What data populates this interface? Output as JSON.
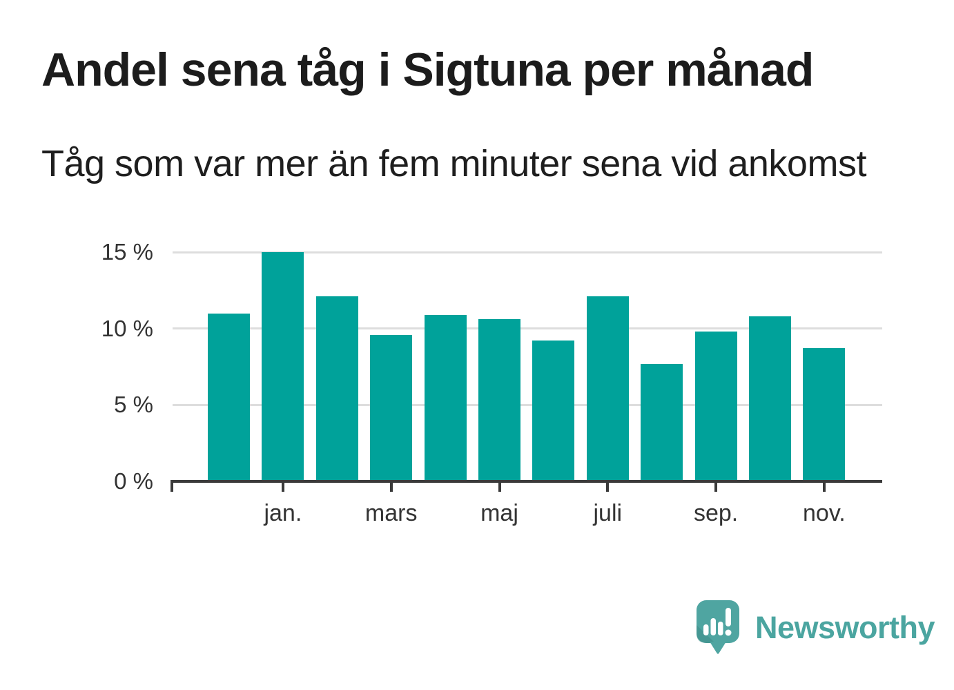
{
  "title": "Andel sena tåg i Sigtuna per månad",
  "subtitle": "Tåg som var mer än fem minuter sena vid ankomst",
  "chart_data": {
    "type": "bar",
    "title": "Andel sena tåg i Sigtuna per månad",
    "subtitle": "Tåg som var mer än fem minuter sena vid ankomst",
    "unit": "%",
    "bar_count": 12,
    "values": [
      11.0,
      15.0,
      12.1,
      9.6,
      10.9,
      10.6,
      9.2,
      12.1,
      7.7,
      9.8,
      10.8,
      8.7
    ],
    "x_ticks": [
      {
        "bar_index": 1,
        "label": "jan."
      },
      {
        "bar_index": 3,
        "label": "mars"
      },
      {
        "bar_index": 5,
        "label": "maj"
      },
      {
        "bar_index": 7,
        "label": "juli"
      },
      {
        "bar_index": 9,
        "label": "sep."
      },
      {
        "bar_index": 11,
        "label": "nov."
      }
    ],
    "y_ticks": [
      {
        "value": 0,
        "label": "0 %"
      },
      {
        "value": 5,
        "label": "5 %"
      },
      {
        "value": 10,
        "label": "10 %"
      },
      {
        "value": 15,
        "label": "15 %"
      }
    ],
    "ylim": [
      0,
      15.4
    ],
    "grid": true,
    "legend": null,
    "bar_color": "#00A29A"
  },
  "branding": {
    "wordmark": "Newsworthy",
    "logo_icon": "newsworthy-speech-bubble-chart",
    "brand_color": "#4FA5A1"
  },
  "colors": {
    "background": "#FFFFFF",
    "text": "#1C1C1C",
    "axis": "#3A3A3A",
    "gridline": "#DDDDDD"
  }
}
